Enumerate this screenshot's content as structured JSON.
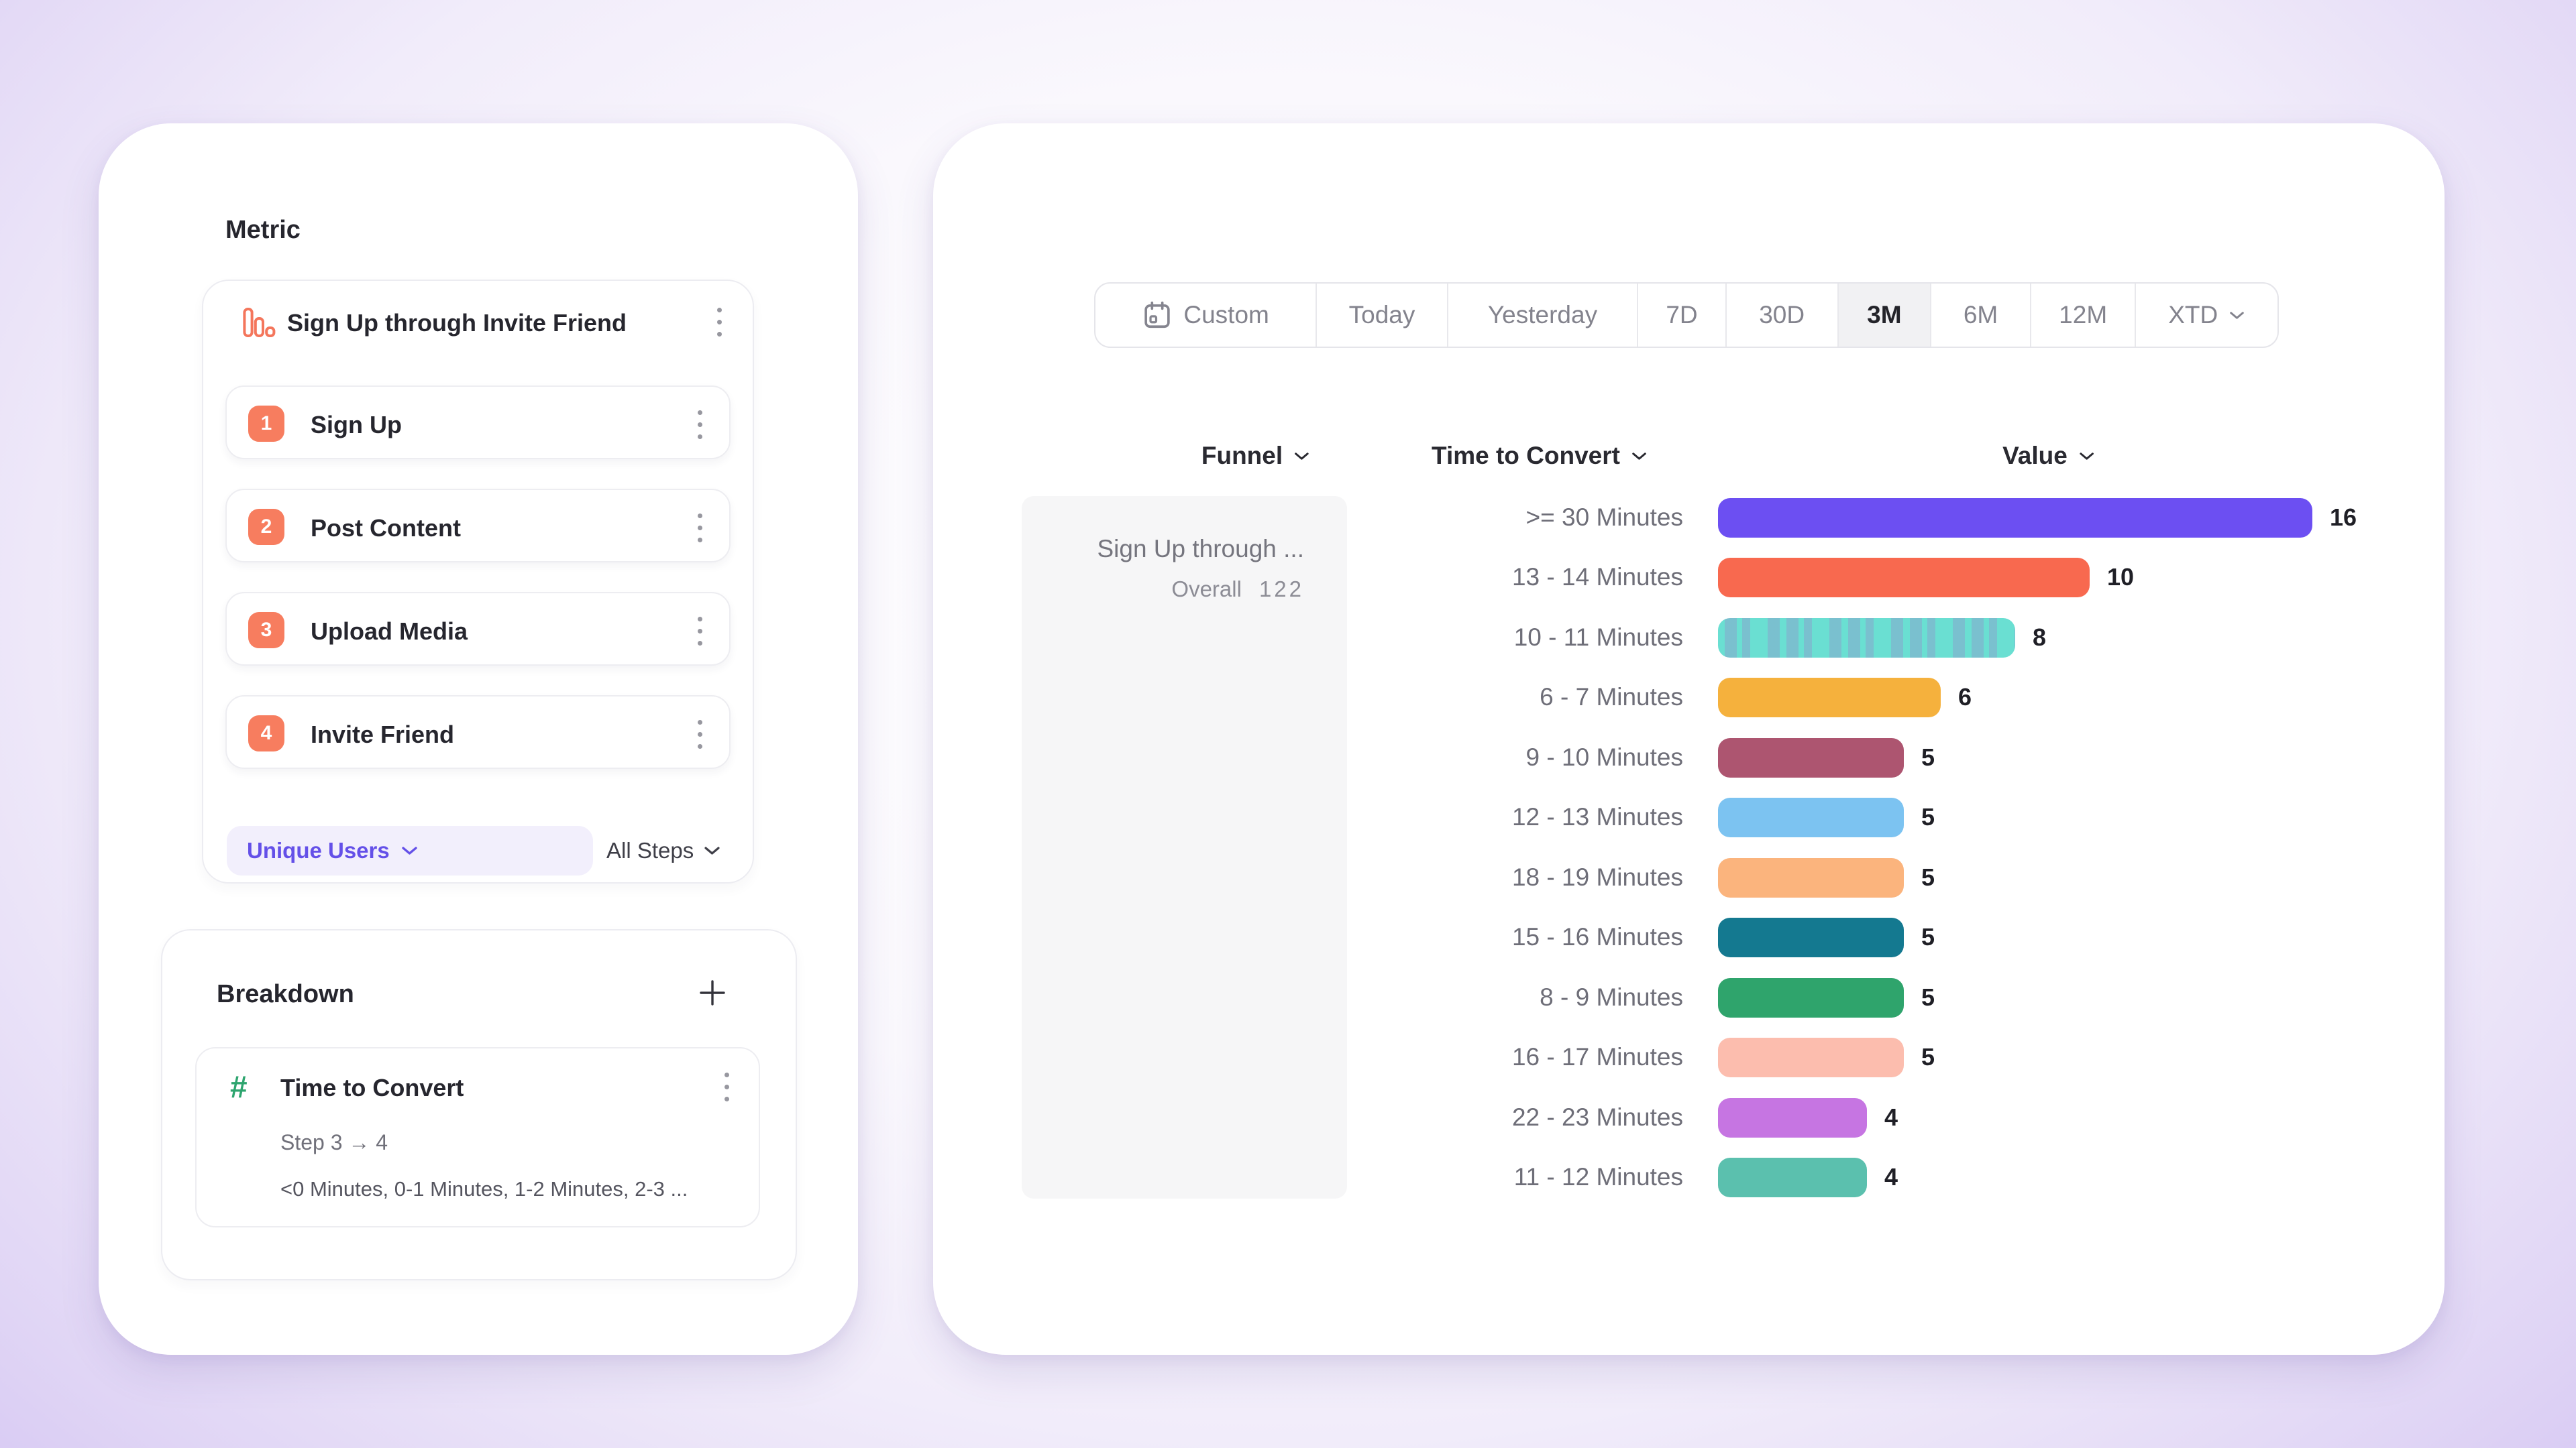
{
  "theme": {
    "accent_purple": "#6450E8",
    "accent_orange": "#F77D5F",
    "accent_green": "#2EA56F",
    "panel_bg": "#FFFFFF",
    "page_gradient_edge": "#BDA8ED",
    "selected_segment_bg": "#F1F1F3",
    "funnel_cell_bg": "#F6F6F7"
  },
  "left_panel": {
    "metric": {
      "heading": "Metric",
      "funnel_name": "Sign Up through Invite Friend",
      "funnel_icon": "bar-chart-icon",
      "steps": [
        {
          "number": "1",
          "label": "Sign Up"
        },
        {
          "number": "2",
          "label": "Post Content"
        },
        {
          "number": "3",
          "label": "Upload Media"
        },
        {
          "number": "4",
          "label": "Invite Friend"
        }
      ],
      "measurement_label": "Unique Users",
      "steps_scope_label": "All Steps"
    },
    "breakdown": {
      "heading": "Breakdown",
      "add_icon": "plus-icon",
      "property": {
        "icon": "hash-icon",
        "name": "Time to Convert",
        "step_range": "Step 3 → 4",
        "buckets_preview": "<0 Minutes, 0-1 Minutes, 1-2 Minutes, 2-3 ..."
      }
    }
  },
  "right_panel": {
    "date_picker": {
      "options": [
        "Custom",
        "Today",
        "Yesterday",
        "7D",
        "30D",
        "3M",
        "6M",
        "12M",
        "XTD"
      ],
      "selected": "3M",
      "custom_icon": "calendar-icon",
      "xtd_icon": "chevron-down-icon"
    },
    "columns": {
      "funnel": "Funnel",
      "breakdown": "Time to Convert",
      "value": "Value"
    },
    "funnel_cell": {
      "title": "Sign Up through ...",
      "overall_label": "Overall",
      "overall_value": "122"
    }
  },
  "chart_data": {
    "type": "bar",
    "orientation": "horizontal",
    "xlabel": "Value",
    "ylabel": "Time to Convert",
    "xlim": [
      0,
      16
    ],
    "value_labels": true,
    "legend": "none",
    "grid": false,
    "categories": [
      ">= 30 Minutes",
      "13 - 14 Minutes",
      "10 - 11 Minutes",
      "6 - 7 Minutes",
      "9 - 10 Minutes",
      "12 - 13 Minutes",
      "18 - 19 Minutes",
      "15 - 16 Minutes",
      "8 - 9 Minutes",
      "16 - 17 Minutes",
      "22 - 23 Minutes",
      "11 - 12 Minutes"
    ],
    "values": [
      16,
      10,
      8,
      6,
      5,
      5,
      5,
      5,
      5,
      5,
      4,
      4
    ],
    "colors": [
      "#6C4FF2",
      "#F8694F",
      "#6ADFD2",
      "#F5B13D",
      "#AD5570",
      "#7CC3F1",
      "#FBB47D",
      "#147990",
      "#2FA46C",
      "#FCBDAE",
      "#C675E2",
      "#5BC0AE"
    ],
    "patterns": [
      "solid",
      "solid",
      "dotted",
      "solid",
      "solid",
      "solid",
      "solid",
      "solid",
      "solid",
      "solid",
      "solid",
      "solid"
    ],
    "hatch_color": "#88A6CC",
    "funnel_overall": 122
  }
}
